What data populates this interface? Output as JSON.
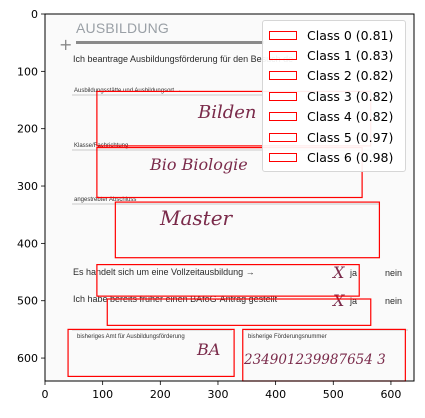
{
  "document": {
    "heading": "AUSBILDUNG",
    "intro": "Ich beantrage Ausbildungsförderung für den Besuch de",
    "field_school": "Ausbildungsstätte und Ausbildungsort →",
    "field_class": "Klasse/Fachrichtung",
    "field_degree": "angestrebter Abschluss",
    "q_fulltime": "Es handelt sich um eine Vollzeitausbildung →",
    "q_bafog": "Ich habe bereits früher einen BAföG-Antrag gestellt",
    "answer_yes": "ja",
    "answer_no": "nein",
    "field_office": "bisheriges Amt für Ausbildungsförderung",
    "field_number": "bisherige Förderungsnummer",
    "hand_school": "Bilden",
    "hand_class": "Bio Biologie",
    "hand_degree": "Master",
    "hand_x1": "X",
    "hand_x2": "X",
    "hand_office": "BA",
    "hand_number": "234901239987654 3"
  },
  "axes": {
    "x_ticks": [
      0,
      100,
      200,
      300,
      400,
      500,
      600
    ],
    "y_ticks": [
      0,
      100,
      200,
      300,
      400,
      500,
      600
    ],
    "xlim": [
      0,
      640
    ],
    "ylim": [
      640,
      0
    ]
  },
  "legend": {
    "color": "#ff0000",
    "items": [
      {
        "label": "Class 0 (0.81)"
      },
      {
        "label": "Class 1 (0.83)"
      },
      {
        "label": "Class 2 (0.82)"
      },
      {
        "label": "Class 3 (0.82)"
      },
      {
        "label": "Class 4 (0.82)"
      },
      {
        "label": "Class 5 (0.97)"
      },
      {
        "label": "Class 6 (0.98)"
      }
    ]
  },
  "detections": [
    {
      "x0": 90,
      "y0": 135,
      "x1": 565,
      "y1": 230
    },
    {
      "x0": 90,
      "y0": 233,
      "x1": 550,
      "y1": 320
    },
    {
      "x0": 122,
      "y0": 328,
      "x1": 580,
      "y1": 425
    },
    {
      "x0": 90,
      "y0": 437,
      "x1": 545,
      "y1": 492
    },
    {
      "x0": 108,
      "y0": 497,
      "x1": 565,
      "y1": 543
    },
    {
      "x0": 40,
      "y0": 550,
      "x1": 328,
      "y1": 632
    },
    {
      "x0": 343,
      "y0": 550,
      "x1": 625,
      "y1": 640
    }
  ]
}
